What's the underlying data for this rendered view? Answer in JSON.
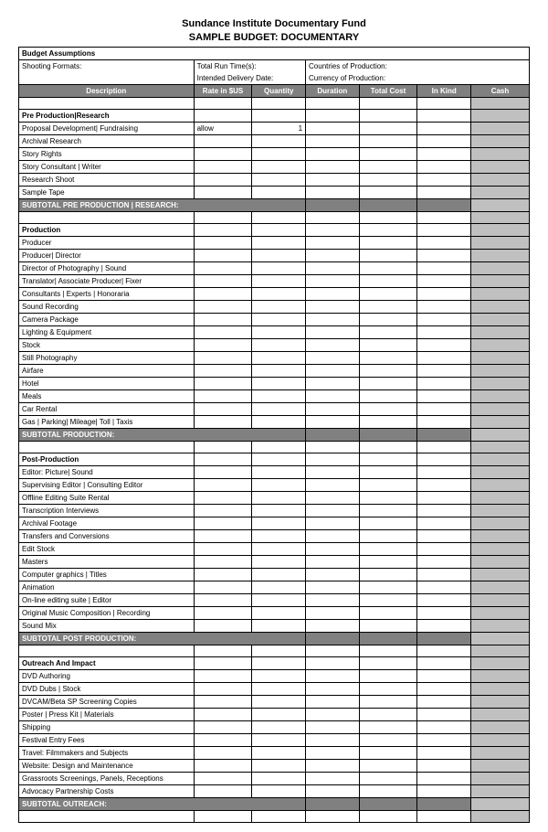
{
  "header": {
    "org": "Sundance Institute Documentary Fund",
    "title": "SAMPLE BUDGET: DOCUMENTARY"
  },
  "assumptions": {
    "title": "Budget Assumptions",
    "row1_left": "Shooting Formats:",
    "row1_mid": "Total Run Time(s):",
    "row1_right": "Countries of Production:",
    "row2_mid": "Intended Delivery Date:",
    "row2_right": "Currency of Production:"
  },
  "columns": [
    "Description",
    "Rate in $US",
    "Quantity",
    "Duration",
    "Total Cost",
    "In Kind",
    "Cash"
  ],
  "sections": [
    {
      "title": "Pre Production|Research",
      "subtotal": "SUBTOTAL PRE PRODUCTION | RESEARCH:",
      "items": [
        {
          "desc": "Proposal Development| Fundraising",
          "rate": "allow",
          "qty": "1"
        },
        {
          "desc": "Archival Research"
        },
        {
          "desc": "Story Rights"
        },
        {
          "desc": "Story Consultant | Writer"
        },
        {
          "desc": "Research Shoot"
        },
        {
          "desc": "Sample Tape"
        }
      ]
    },
    {
      "title": "Production",
      "subtotal": "SUBTOTAL PRODUCTION:",
      "items": [
        {
          "desc": "Producer"
        },
        {
          "desc": "Producer| Director"
        },
        {
          "desc": "Director of Photography | Sound"
        },
        {
          "desc": "Translator| Associate Producer| Fixer"
        },
        {
          "desc": "Consultants | Experts | Honoraria"
        },
        {
          "desc": "Sound Recording"
        },
        {
          "desc": "Camera Package"
        },
        {
          "desc": "Lighting & Equipment"
        },
        {
          "desc": "Stock"
        },
        {
          "desc": "Still Photography"
        },
        {
          "desc": "Airfare"
        },
        {
          "desc": "Hotel"
        },
        {
          "desc": "Meals"
        },
        {
          "desc": "Car Rental"
        },
        {
          "desc": "Gas | Parking| Mileage| Toll | Taxis"
        }
      ]
    },
    {
      "title": "Post-Production",
      "subtotal": "SUBTOTAL POST PRODUCTION:",
      "items": [
        {
          "desc": "Editor: Picture| Sound"
        },
        {
          "desc": "Supervising Editor | Consulting Editor"
        },
        {
          "desc": "Offline Editing Suite Rental"
        },
        {
          "desc": "Transcription Interviews"
        },
        {
          "desc": "Archival Footage"
        },
        {
          "desc": "Transfers and Conversions"
        },
        {
          "desc": "Edit Stock"
        },
        {
          "desc": "Masters"
        },
        {
          "desc": "Computer graphics | Titles"
        },
        {
          "desc": "Animation"
        },
        {
          "desc": "On-line editing suite | Editor"
        },
        {
          "desc": "Original Music Composition | Recording"
        },
        {
          "desc": "Sound Mix"
        }
      ]
    },
    {
      "title": "Outreach And Impact",
      "subtotal": "SUBTOTAL OUTREACH:",
      "items": [
        {
          "desc": "DVD Authoring"
        },
        {
          "desc": "DVD Dubs | Stock"
        },
        {
          "desc": "DVCAM/Beta SP Screening Copies"
        },
        {
          "desc": "Poster | Press Kit | Materials"
        },
        {
          "desc": "Shipping"
        },
        {
          "desc": "Festival Entry Fees"
        },
        {
          "desc": "Travel: Filmmakers and Subjects"
        },
        {
          "desc": "Website: Design and Maintenance"
        },
        {
          "desc": "Grassroots Screenings, Panels, Receptions"
        },
        {
          "desc": "Advocacy Partnership Costs"
        }
      ]
    }
  ],
  "colors": {
    "header_bg": "#808080",
    "header_fg": "#ffffff",
    "cash_bg": "#c0c0c0",
    "border": "#000000"
  }
}
